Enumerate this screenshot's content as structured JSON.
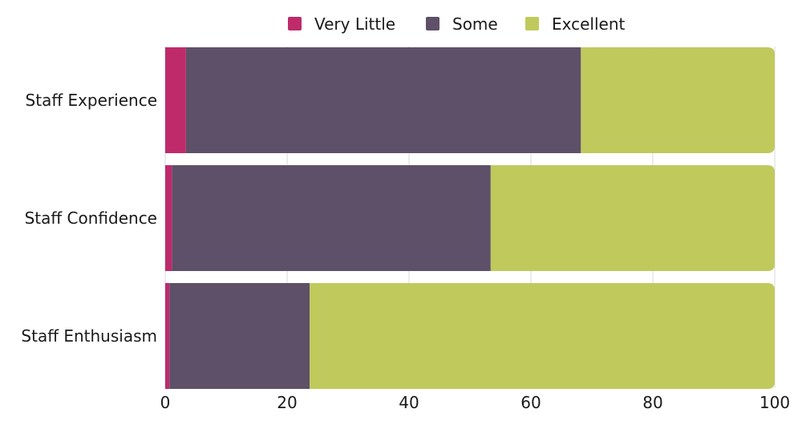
{
  "chart_data": {
    "type": "bar",
    "orientation": "horizontal",
    "stacked": true,
    "categories": [
      "Staff Experience",
      "Staff Confidence",
      "Staff Enthusiasm"
    ],
    "series": [
      {
        "name": "Very Little",
        "color": "#bf2a6b",
        "values": [
          3.4,
          1.1,
          0.7
        ]
      },
      {
        "name": "Some",
        "color": "#5e5068",
        "values": [
          64.8,
          52.3,
          23.0
        ]
      },
      {
        "name": "Excellent",
        "color": "#c0c95c",
        "values": [
          31.8,
          46.6,
          76.3
        ]
      }
    ],
    "xlim": [
      0,
      100
    ],
    "xticks": [
      "0",
      "20",
      "40",
      "60",
      "80",
      "100"
    ],
    "grid": true,
    "legend_position": "top"
  }
}
